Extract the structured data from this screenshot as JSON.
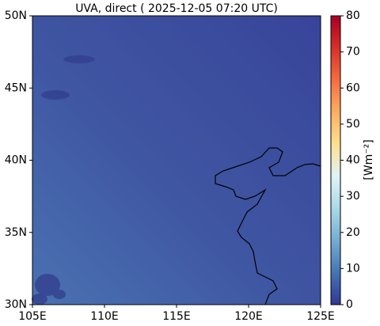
{
  "chart_data": {
    "type": "map",
    "title": "UVA, direct ( 2025-12-05 07:20 UTC)",
    "xlim": [
      105,
      125
    ],
    "ylim": [
      30,
      50
    ],
    "xticks": [
      {
        "value": 105,
        "label": "105E"
      },
      {
        "value": 110,
        "label": "110E"
      },
      {
        "value": 115,
        "label": "115E"
      },
      {
        "value": 120,
        "label": "120E"
      },
      {
        "value": 125,
        "label": "125E"
      }
    ],
    "yticks": [
      {
        "value": 30,
        "label": "30N"
      },
      {
        "value": 35,
        "label": "35N"
      },
      {
        "value": 40,
        "label": "40N"
      },
      {
        "value": 45,
        "label": "45N"
      },
      {
        "value": 50,
        "label": "50N"
      }
    ],
    "colorbar": {
      "label": "[Wm⁻²]",
      "colormap": "RdYlBu_r",
      "lim": [
        0,
        80
      ],
      "ticks": [
        0,
        10,
        20,
        30,
        40,
        50,
        60,
        70,
        80
      ]
    }
  }
}
